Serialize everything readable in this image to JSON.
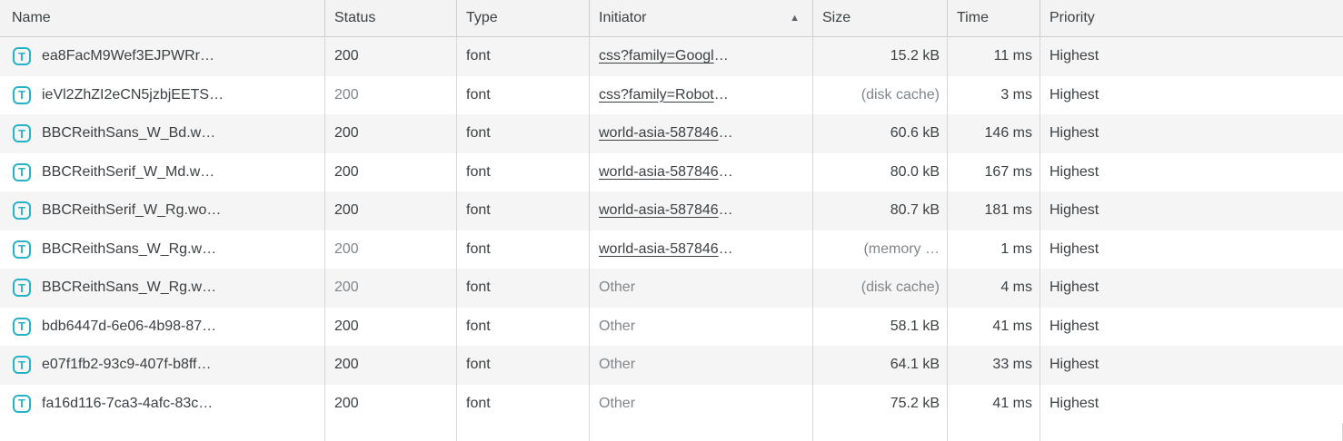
{
  "table": {
    "columns": [
      {
        "id": "name",
        "label": "Name"
      },
      {
        "id": "status",
        "label": "Status"
      },
      {
        "id": "type",
        "label": "Type"
      },
      {
        "id": "initiator",
        "label": "Initiator",
        "sorted": "ascending"
      },
      {
        "id": "size",
        "label": "Size"
      },
      {
        "id": "time",
        "label": "Time"
      },
      {
        "id": "priority",
        "label": "Priority"
      }
    ],
    "sort_icon": "▲",
    "row_icon_glyph": "T",
    "ellipsis": "…"
  },
  "colors": {
    "icon_teal": "#28b2c8",
    "text_dark": "#3c4043",
    "text_muted": "#80868b",
    "header_bg": "#f3f3f3",
    "stripe_bg": "#f5f5f5",
    "border": "#d7d7d7"
  },
  "rows": [
    {
      "name": "ea8FacM9Wef3EJPWRr…",
      "status": "200",
      "status_cached": false,
      "type": "font",
      "initiator": "css?family=Googl",
      "initiator_is_link": true,
      "initiator_truncated": true,
      "size": "15.2 kB",
      "size_cached": false,
      "time": "11 ms",
      "priority": "Highest"
    },
    {
      "name": "ieVl2ZhZI2eCN5jzbjEETS…",
      "status": "200",
      "status_cached": true,
      "type": "font",
      "initiator": "css?family=Robot",
      "initiator_is_link": true,
      "initiator_truncated": true,
      "size": "(disk cache)",
      "size_cached": true,
      "time": "3 ms",
      "priority": "Highest"
    },
    {
      "name": "BBCReithSans_W_Bd.w…",
      "status": "200",
      "status_cached": false,
      "type": "font",
      "initiator": "world-asia-587846",
      "initiator_is_link": true,
      "initiator_truncated": true,
      "size": "60.6 kB",
      "size_cached": false,
      "time": "146 ms",
      "priority": "Highest"
    },
    {
      "name": "BBCReithSerif_W_Md.w…",
      "status": "200",
      "status_cached": false,
      "type": "font",
      "initiator": "world-asia-587846",
      "initiator_is_link": true,
      "initiator_truncated": true,
      "size": "80.0 kB",
      "size_cached": false,
      "time": "167 ms",
      "priority": "Highest"
    },
    {
      "name": "BBCReithSerif_W_Rg.wo…",
      "status": "200",
      "status_cached": false,
      "type": "font",
      "initiator": "world-asia-587846",
      "initiator_is_link": true,
      "initiator_truncated": true,
      "size": "80.7 kB",
      "size_cached": false,
      "time": "181 ms",
      "priority": "Highest"
    },
    {
      "name": "BBCReithSans_W_Rg.w…",
      "status": "200",
      "status_cached": true,
      "type": "font",
      "initiator": "world-asia-587846",
      "initiator_is_link": true,
      "initiator_truncated": true,
      "size": "(memory …",
      "size_cached": true,
      "time": "1 ms",
      "priority": "Highest"
    },
    {
      "name": "BBCReithSans_W_Rg.w…",
      "status": "200",
      "status_cached": true,
      "type": "font",
      "initiator": "Other",
      "initiator_is_link": false,
      "initiator_truncated": false,
      "size": "(disk cache)",
      "size_cached": true,
      "time": "4 ms",
      "priority": "Highest"
    },
    {
      "name": "bdb6447d-6e06-4b98-87…",
      "status": "200",
      "status_cached": false,
      "type": "font",
      "initiator": "Other",
      "initiator_is_link": false,
      "initiator_truncated": false,
      "size": "58.1 kB",
      "size_cached": false,
      "time": "41 ms",
      "priority": "Highest"
    },
    {
      "name": "e07f1fb2-93c9-407f-b8ff…",
      "status": "200",
      "status_cached": false,
      "type": "font",
      "initiator": "Other",
      "initiator_is_link": false,
      "initiator_truncated": false,
      "size": "64.1 kB",
      "size_cached": false,
      "time": "33 ms",
      "priority": "Highest"
    },
    {
      "name": "fa16d116-7ca3-4afc-83c…",
      "status": "200",
      "status_cached": false,
      "type": "font",
      "initiator": "Other",
      "initiator_is_link": false,
      "initiator_truncated": false,
      "size": "75.2 kB",
      "size_cached": false,
      "time": "41 ms",
      "priority": "Highest"
    }
  ]
}
